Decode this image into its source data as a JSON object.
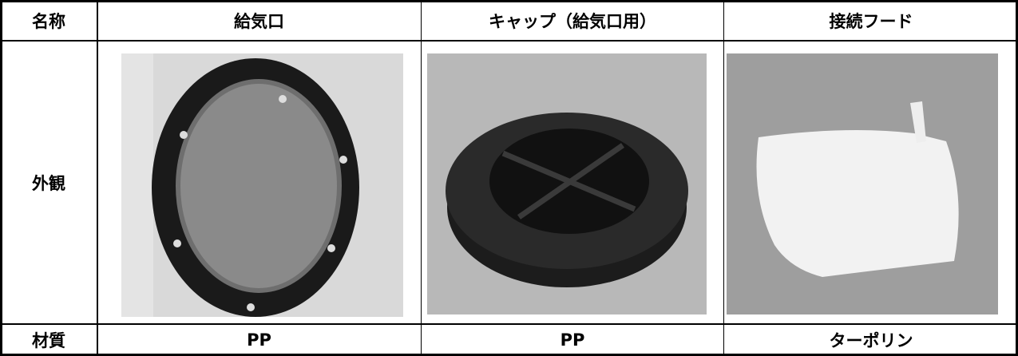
{
  "table": {
    "header": [
      "名称",
      "給気口",
      "キャップ（給気口用）",
      "接続フード"
    ],
    "rows": [
      [
        "外観"
      ],
      [
        "材質",
        "PP",
        "PP",
        "ターポリン"
      ]
    ]
  }
}
